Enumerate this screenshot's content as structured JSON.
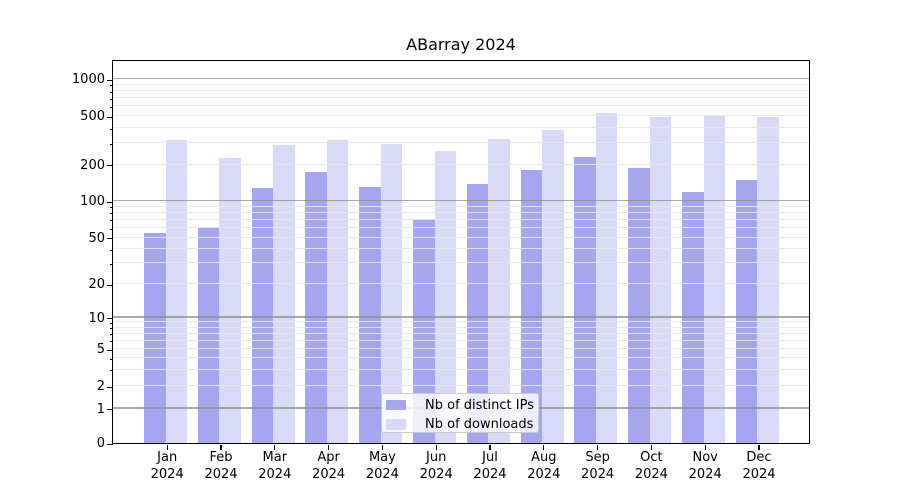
{
  "chart_data": {
    "type": "bar",
    "title": "ABarray 2024",
    "categories": [
      "Jan",
      "Feb",
      "Mar",
      "Apr",
      "May",
      "Jun",
      "Jul",
      "Aug",
      "Sep",
      "Oct",
      "Nov",
      "Dec"
    ],
    "x_tick_second_line": "2024",
    "series": [
      {
        "name": "Nb of distinct IPs",
        "color": "#a5a5f0",
        "values": [
          54,
          61,
          128,
          172,
          129,
          71,
          136,
          178,
          230,
          184,
          117,
          147
        ]
      },
      {
        "name": "Nb of downloads",
        "color": "#d9d9f8",
        "values": [
          315,
          222,
          286,
          313,
          290,
          256,
          320,
          380,
          525,
          490,
          505,
          490
        ]
      }
    ],
    "y_ticks": [
      "0",
      "1",
      "2",
      "5",
      "10",
      "20",
      "50",
      "100",
      "200",
      "500",
      "1000"
    ],
    "ylabel": "",
    "xlabel": "",
    "yscale": "symlog (log above 1, linear 0-1)",
    "ylim": [
      0,
      1400
    ],
    "grid": "major and minor horizontal gridlines drawn above bars",
    "legend_position": "lower center"
  },
  "colors": {
    "major_grid": "rgba(140,140,140,0.75)",
    "minor_grid": "rgba(231,231,231,0.9)",
    "spine": "#000000",
    "background": "#ffffff"
  }
}
